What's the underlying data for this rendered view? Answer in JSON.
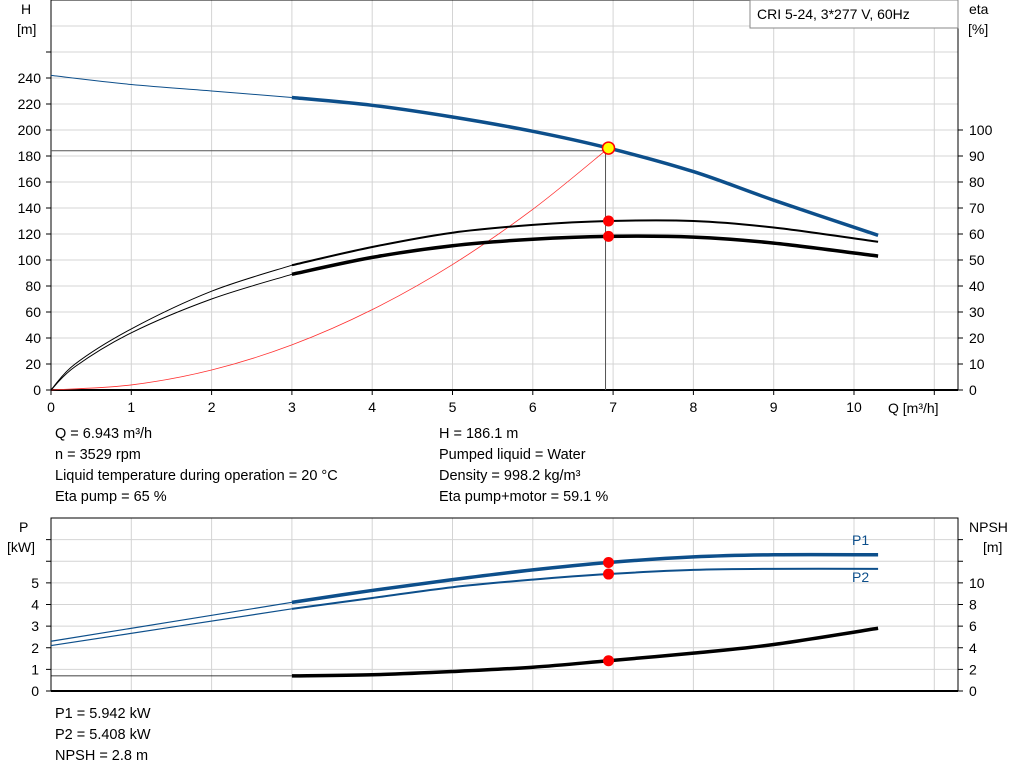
{
  "chart_data": [
    {
      "type": "line",
      "title": "CRI 5-24, 3*277 V, 60Hz",
      "xlabel": "Q [m³/h]",
      "ylabel_left": [
        "H",
        "[m]"
      ],
      "ylabel_right": [
        "eta",
        "[%]"
      ],
      "xlim": [
        0,
        11.3
      ],
      "ylim_left": [
        0,
        300
      ],
      "ylim_right": [
        0,
        150
      ],
      "x_ticks": [
        "0",
        "1",
        "2",
        "3",
        "4",
        "5",
        "6",
        "7",
        "8",
        "9",
        "10"
      ],
      "y_left_ticks": [
        "0",
        "20",
        "40",
        "60",
        "80",
        "100",
        "120",
        "140",
        "160",
        "180",
        "200",
        "220",
        "240"
      ],
      "y_right_ticks": [
        "0",
        "10",
        "20",
        "30",
        "40",
        "50",
        "60",
        "70",
        "80",
        "90",
        "100"
      ],
      "grid": true,
      "colors": {
        "head": "#0d4f8b",
        "eta": "#000000",
        "system": "#ff3030",
        "point": "#ff0000",
        "duty": "#ffff00"
      },
      "series": [
        {
          "key": "head",
          "axis": "left",
          "x": [
            0,
            1,
            2,
            3,
            4,
            5,
            6,
            6.943,
            8,
            9,
            10.3
          ],
          "y": [
            242,
            235,
            230,
            225,
            219,
            210,
            199,
            186.1,
            168,
            146,
            119
          ]
        },
        {
          "key": "eta_pump",
          "axis": "right",
          "x": [
            0,
            0.3,
            1,
            2,
            3,
            4,
            5,
            6,
            6.943,
            8,
            9,
            10.3
          ],
          "y": [
            0,
            10,
            23.5,
            38,
            48,
            55,
            60.5,
            63.5,
            65,
            65,
            62.5,
            57
          ]
        },
        {
          "key": "eta_total",
          "axis": "right",
          "x": [
            0,
            0.3,
            1,
            2,
            3,
            4,
            5,
            6,
            6.943,
            8,
            9,
            10.3
          ],
          "y": [
            0,
            9,
            22,
            35,
            44.5,
            51,
            55.5,
            58,
            59.1,
            58.8,
            56.5,
            51.5
          ]
        },
        {
          "key": "system",
          "axis": "left",
          "x": [
            0,
            1,
            2,
            3,
            4,
            5,
            6,
            6.943
          ],
          "y": [
            0,
            3.9,
            15.4,
            34.7,
            61.8,
            96.5,
            139,
            186.1
          ]
        }
      ],
      "duty_point": {
        "Q": 6.943,
        "H": 186.1,
        "eta_pump": 65,
        "eta_total": 59.1
      }
    },
    {
      "type": "line",
      "xlim": [
        0,
        11.3
      ],
      "ylabel_left": [
        "P",
        "[kW]"
      ],
      "ylabel_right": [
        "NPSH",
        "[m]"
      ],
      "ylim_left": [
        0,
        8
      ],
      "ylim_right": [
        0,
        16
      ],
      "y_left_ticks": [
        "0",
        "1",
        "2",
        "3",
        "4",
        "5"
      ],
      "y_right_ticks": [
        "0",
        "2",
        "4",
        "6",
        "8",
        "10"
      ],
      "grid": true,
      "series": [
        {
          "key": "P1",
          "name": "P1",
          "axis": "left",
          "x": [
            0,
            3,
            4,
            5,
            6,
            6.943,
            8,
            9,
            10.3
          ],
          "y": [
            2.3,
            4.1,
            4.65,
            5.15,
            5.6,
            5.942,
            6.2,
            6.3,
            6.3
          ]
        },
        {
          "key": "P2",
          "name": "P2",
          "axis": "left",
          "x": [
            0,
            3,
            4,
            5,
            6,
            6.943,
            8,
            9,
            10.3
          ],
          "y": [
            2.1,
            3.8,
            4.3,
            4.8,
            5.15,
            5.408,
            5.6,
            5.65,
            5.65
          ]
        },
        {
          "key": "NPSH",
          "axis": "right",
          "x": [
            0,
            3,
            4,
            5,
            6,
            6.943,
            8,
            9,
            10.3
          ],
          "y": [
            1.4,
            1.4,
            1.5,
            1.8,
            2.2,
            2.8,
            3.5,
            4.3,
            5.8
          ]
        }
      ]
    }
  ],
  "info_top_left": [
    "Q = 6.943 m³/h",
    "n = 3529 rpm",
    "Liquid temperature during operation = 20 °C",
    "Eta pump = 65 %"
  ],
  "info_top_right": [
    "H = 186.1 m",
    "Pumped liquid = Water",
    "Density = 998.2 kg/m³",
    "Eta pump+motor = 59.1 %"
  ],
  "info_bottom": [
    "P1 = 5.942 kW",
    "P2 = 5.408 kW",
    "NPSH = 2.8 m"
  ]
}
